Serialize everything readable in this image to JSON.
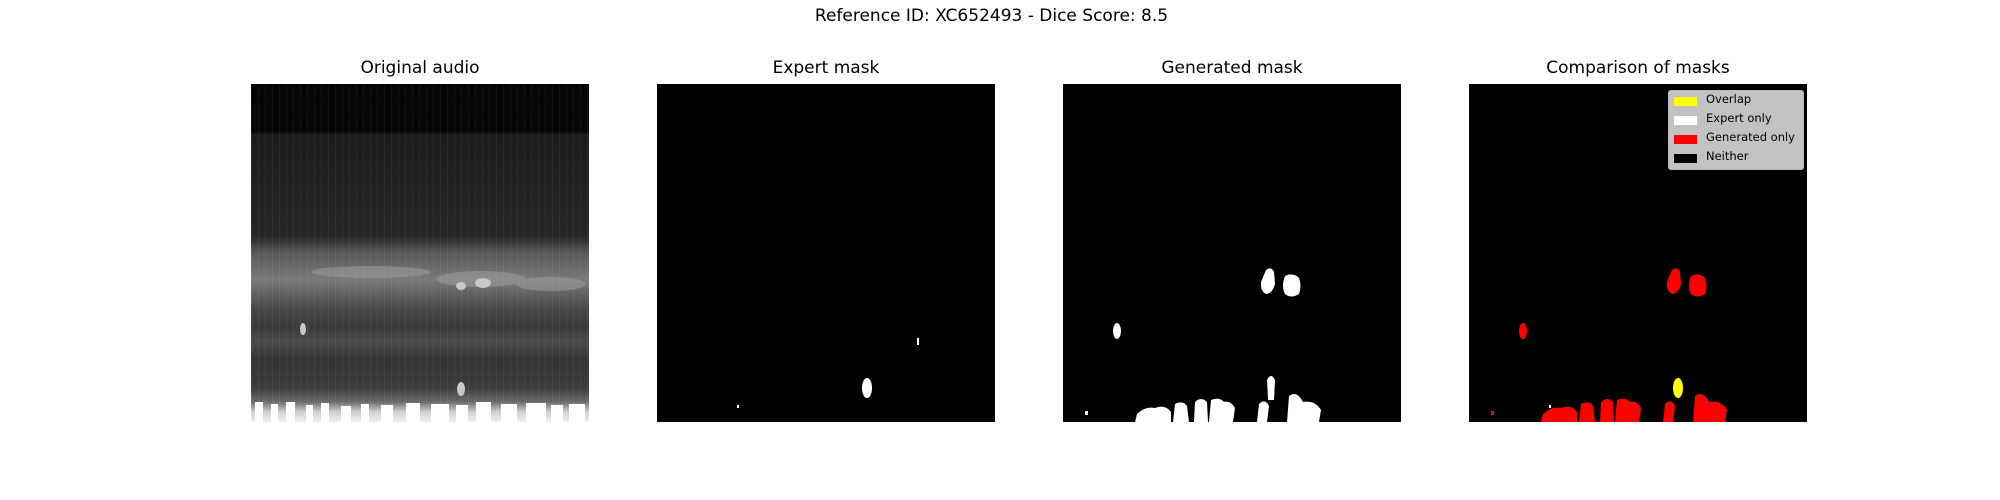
{
  "figure": {
    "title": "Reference ID: XC652493 - Dice Score: 8.5"
  },
  "panels": [
    {
      "title": "Original audio"
    },
    {
      "title": "Expert mask"
    },
    {
      "title": "Generated mask"
    },
    {
      "title": "Comparison of masks"
    }
  ],
  "legend": {
    "items": [
      {
        "label": "Overlap",
        "color": "#ffff00"
      },
      {
        "label": "Expert only",
        "color": "#ffffff"
      },
      {
        "label": "Generated only",
        "color": "#ff0000"
      },
      {
        "label": "Neither",
        "color": "#000000"
      }
    ]
  },
  "colors": {
    "mask_white": "#ffffff",
    "background": "#000000",
    "overlap": "#ffff00",
    "generated_only": "#ff0000"
  }
}
